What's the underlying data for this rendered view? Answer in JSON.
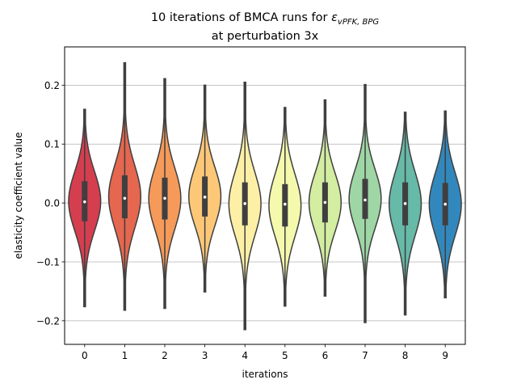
{
  "chart_data": {
    "type": "violin",
    "title_line1_prefix": "10 iterations of BMCA runs for ",
    "title_symbol": "ε",
    "title_subscript": "vPFK, BPG",
    "title_line2": "at perturbation 3x",
    "xlabel": "iterations",
    "ylabel": "elasticity coefficient value",
    "ylim": [
      -0.24,
      0.265
    ],
    "yticks": [
      {
        "value": -0.2,
        "label": "−0.2"
      },
      {
        "value": -0.1,
        "label": "−0.1"
      },
      {
        "value": 0.0,
        "label": "0.0"
      },
      {
        "value": 0.1,
        "label": "0.1"
      },
      {
        "value": 0.2,
        "label": "0.2"
      }
    ],
    "grid": "horizontal",
    "categories": [
      "0",
      "1",
      "2",
      "3",
      "4",
      "5",
      "6",
      "7",
      "8",
      "9"
    ],
    "colors": [
      "#d53e4f",
      "#e5674f",
      "#f69a5a",
      "#fcc878",
      "#fdf0a6",
      "#f4f9ad",
      "#d3eda1",
      "#9fd6a5",
      "#66baa7",
      "#3288bd"
    ],
    "series": [
      {
        "category": "0",
        "min": -0.176,
        "max": 0.159,
        "q1": -0.031,
        "median": 0.002,
        "q3": 0.037
      },
      {
        "category": "1",
        "min": -0.182,
        "max": 0.238,
        "q1": -0.026,
        "median": 0.008,
        "q3": 0.047
      },
      {
        "category": "2",
        "min": -0.179,
        "max": 0.211,
        "q1": -0.028,
        "median": 0.008,
        "q3": 0.043
      },
      {
        "category": "3",
        "min": -0.151,
        "max": 0.2,
        "q1": -0.023,
        "median": 0.01,
        "q3": 0.045
      },
      {
        "category": "4",
        "min": -0.215,
        "max": 0.205,
        "q1": -0.038,
        "median": -0.001,
        "q3": 0.035
      },
      {
        "category": "5",
        "min": -0.175,
        "max": 0.162,
        "q1": -0.04,
        "median": -0.002,
        "q3": 0.032
      },
      {
        "category": "6",
        "min": -0.158,
        "max": 0.175,
        "q1": -0.033,
        "median": 0.001,
        "q3": 0.035
      },
      {
        "category": "7",
        "min": -0.203,
        "max": 0.201,
        "q1": -0.027,
        "median": 0.005,
        "q3": 0.041
      },
      {
        "category": "8",
        "min": -0.19,
        "max": 0.154,
        "q1": -0.038,
        "median": -0.001,
        "q3": 0.035
      },
      {
        "category": "9",
        "min": -0.161,
        "max": 0.156,
        "q1": -0.038,
        "median": -0.002,
        "q3": 0.034
      }
    ]
  }
}
